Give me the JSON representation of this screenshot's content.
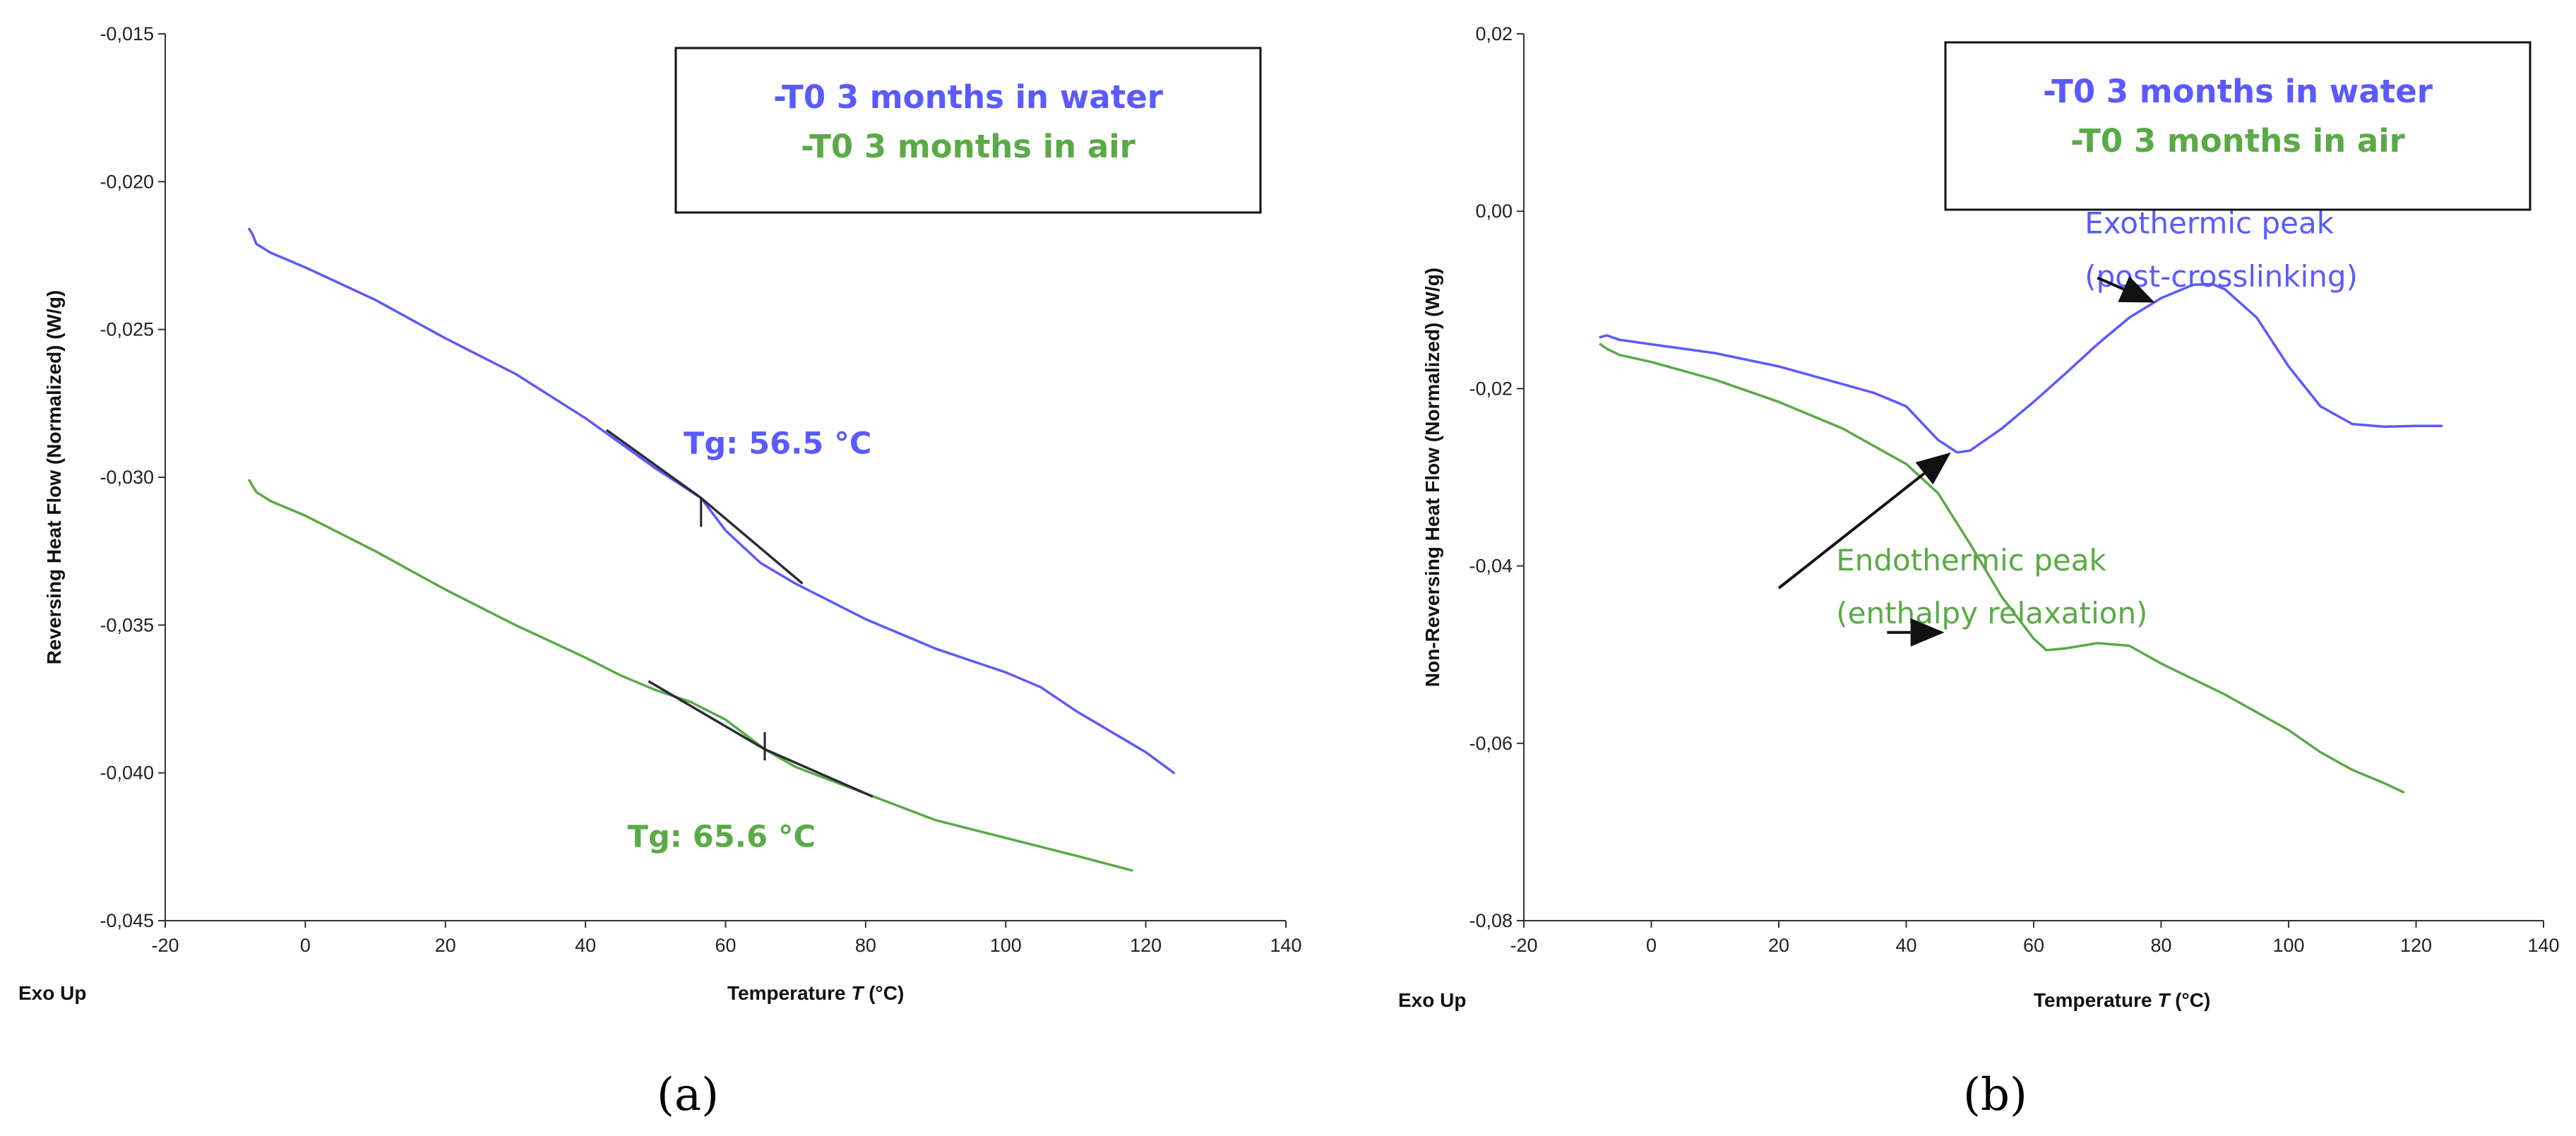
{
  "chart_data": [
    {
      "type": "line",
      "panel_label": "(a)",
      "corner_note": "Exo Up",
      "xlabel": "Temperature T (°C)",
      "xlabel_parts": {
        "pre": "Temperature ",
        "var": "T",
        "post": " (°C)"
      },
      "ylabel": "Reversing Heat Flow (Normalized) (W/g)",
      "xlim": [
        -20,
        140
      ],
      "ylim": [
        -0.045,
        -0.015
      ],
      "xticks": [
        -20,
        0,
        20,
        40,
        60,
        80,
        100,
        120,
        140
      ],
      "xtick_labels": [
        "-20",
        "0",
        "20",
        "40",
        "60",
        "80",
        "100",
        "120",
        "140"
      ],
      "yticks": [
        -0.045,
        -0.04,
        -0.035,
        -0.03,
        -0.025,
        -0.02,
        -0.015
      ],
      "ytick_labels": [
        "-0,045",
        "-0,040",
        "-0,035",
        "-0,030",
        "-0,025",
        "-0,020",
        "-0,015"
      ],
      "legend": {
        "position": "top-right",
        "entries": [
          "-T0 3 months in water",
          "-T0 3 months in air"
        ]
      },
      "series": [
        {
          "name": "-T0 3 months in water",
          "color": "#5a5aff",
          "x": [
            -8,
            -7.5,
            -7,
            -5,
            0,
            10,
            20,
            30,
            40,
            50,
            56.5,
            60,
            65,
            70,
            80,
            90,
            100,
            105,
            110,
            115,
            120,
            124
          ],
          "y": [
            -0.0216,
            -0.0218,
            -0.0221,
            -0.0224,
            -0.0229,
            -0.024,
            -0.0253,
            -0.0265,
            -0.028,
            -0.0297,
            -0.0307,
            -0.0318,
            -0.0329,
            -0.0336,
            -0.0348,
            -0.0358,
            -0.0366,
            -0.0371,
            -0.0379,
            -0.0386,
            -0.0393,
            -0.04
          ]
        },
        {
          "name": "-T0 3 months in air",
          "color": "#5aaa46",
          "x": [
            -8,
            -7.5,
            -7,
            -5,
            0,
            10,
            20,
            30,
            40,
            45,
            50,
            55,
            60,
            65.6,
            70,
            80,
            90,
            100,
            110,
            118
          ],
          "y": [
            -0.0301,
            -0.0303,
            -0.0305,
            -0.0308,
            -0.0313,
            -0.0325,
            -0.0338,
            -0.035,
            -0.0361,
            -0.0367,
            -0.0372,
            -0.0376,
            -0.0382,
            -0.0392,
            -0.0398,
            -0.0407,
            -0.0416,
            -0.0422,
            -0.0428,
            -0.0433
          ]
        }
      ],
      "tangent_segments": [
        {
          "x": [
            43,
            56.5,
            71
          ],
          "y": [
            -0.0284,
            -0.0307,
            -0.0336
          ]
        },
        {
          "x": [
            49,
            65.6,
            81
          ],
          "y": [
            -0.0369,
            -0.0392,
            -0.0408
          ]
        }
      ],
      "markers": [
        {
          "x": 56.5,
          "y": -0.0312
        },
        {
          "x": 65.6,
          "y": -0.0391
        }
      ],
      "annotations": [
        {
          "text": "Tg: 56.5 °C",
          "x": 54,
          "y": -0.0292,
          "color": "#5a5aff"
        },
        {
          "text": "Tg: 65.6 °C",
          "x": 46,
          "y": -0.0425,
          "color": "#5aaa46"
        }
      ]
    },
    {
      "type": "line",
      "panel_label": "(b)",
      "corner_note": "Exo Up",
      "xlabel": "Temperature T (°C)",
      "xlabel_parts": {
        "pre": "Temperature ",
        "var": "T",
        "post": " (°C)"
      },
      "ylabel": "Non-Reversing Heat Flow (Normalized) (W/g)",
      "xlim": [
        -20,
        140
      ],
      "ylim": [
        -0.08,
        0.02
      ],
      "xticks": [
        -20,
        0,
        20,
        40,
        60,
        80,
        100,
        120,
        140
      ],
      "xtick_labels": [
        "-20",
        "0",
        "20",
        "40",
        "60",
        "80",
        "100",
        "120",
        "140"
      ],
      "yticks": [
        -0.08,
        -0.06,
        -0.04,
        -0.02,
        0.0,
        0.02
      ],
      "ytick_labels": [
        "-0,08",
        "-0,06",
        "-0,04",
        "-0,02",
        "0,00",
        "0,02"
      ],
      "legend": {
        "position": "top-right",
        "entries": [
          "-T0 3 months in water",
          "-T0 3 months in air"
        ]
      },
      "series": [
        {
          "name": "-T0 3 months in water",
          "color": "#5a5aff",
          "x": [
            -8,
            -7,
            -5,
            0,
            10,
            20,
            30,
            35,
            40,
            45,
            48,
            50,
            55,
            60,
            65,
            70,
            75,
            80,
            85,
            88,
            90,
            95,
            100,
            105,
            110,
            115,
            120,
            124
          ],
          "y": [
            -0.0142,
            -0.014,
            -0.0145,
            -0.015,
            -0.016,
            -0.0175,
            -0.0195,
            -0.0205,
            -0.022,
            -0.0258,
            -0.0272,
            -0.027,
            -0.0245,
            -0.0215,
            -0.0183,
            -0.015,
            -0.012,
            -0.0098,
            -0.0083,
            -0.0082,
            -0.0088,
            -0.012,
            -0.0175,
            -0.022,
            -0.024,
            -0.0243,
            -0.0242,
            -0.0242
          ]
        },
        {
          "name": "-T0 3 months in air",
          "color": "#5aaa46",
          "x": [
            -8,
            -7,
            -5,
            0,
            10,
            20,
            30,
            40,
            45,
            50,
            55,
            60,
            62,
            65,
            70,
            75,
            80,
            90,
            100,
            105,
            110,
            115,
            118
          ],
          "y": [
            -0.015,
            -0.0155,
            -0.0162,
            -0.017,
            -0.019,
            -0.0215,
            -0.0245,
            -0.0285,
            -0.0318,
            -0.0375,
            -0.0435,
            -0.0482,
            -0.0495,
            -0.0493,
            -0.0487,
            -0.049,
            -0.051,
            -0.0545,
            -0.0585,
            -0.061,
            -0.063,
            -0.0645,
            -0.0655
          ]
        }
      ],
      "annotations": [
        {
          "text": "Exothermic peak",
          "x": 68,
          "y": -0.0025,
          "color": "#5a5aff"
        },
        {
          "text": "(post-crosslinking)",
          "x": 68,
          "y": -0.0085,
          "color": "#5a5aff"
        },
        {
          "text": "Endothermic peak",
          "x": 29,
          "y": -0.0405,
          "color": "#5aaa46"
        },
        {
          "text": "(enthalpy relaxation)",
          "x": 29,
          "y": -0.0465,
          "color": "#5aaa46"
        }
      ],
      "arrows": [
        {
          "from": [
            70,
            -0.0075
          ],
          "to": [
            79,
            -0.0103
          ]
        },
        {
          "from": [
            20,
            -0.0425
          ],
          "to": [
            47,
            -0.0272
          ]
        },
        {
          "from": [
            37,
            -0.0475
          ],
          "to": [
            46,
            -0.0475
          ]
        }
      ]
    }
  ]
}
